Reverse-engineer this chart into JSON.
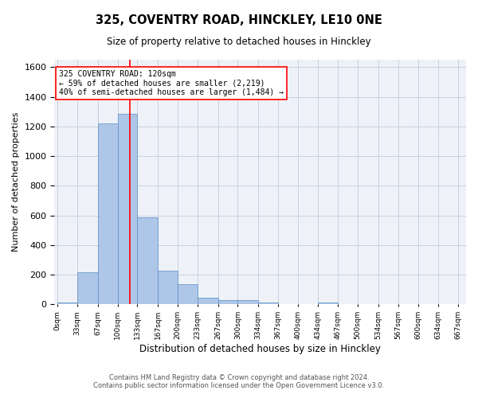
{
  "title": "325, COVENTRY ROAD, HINCKLEY, LE10 0NE",
  "subtitle": "Size of property relative to detached houses in Hinckley",
  "xlabel": "Distribution of detached houses by size in Hinckley",
  "ylabel": "Number of detached properties",
  "footnote1": "Contains HM Land Registry data © Crown copyright and database right 2024.",
  "footnote2": "Contains public sector information licensed under the Open Government Licence v3.0.",
  "bar_color": "#aec6e8",
  "bar_edgecolor": "#5a8fc2",
  "gridcolor": "#c8d0e0",
  "background_color": "#eef2f8",
  "property_size": 120,
  "property_label": "325 COVENTRY ROAD: 120sqm",
  "annotation_line1": "← 59% of detached houses are smaller (2,219)",
  "annotation_line2": "40% of semi-detached houses are larger (1,484) →",
  "redline_x": 120,
  "ylim": [
    0,
    1650
  ],
  "yticks": [
    0,
    200,
    400,
    600,
    800,
    1000,
    1200,
    1400,
    1600
  ],
  "bin_edges": [
    0,
    33,
    67,
    100,
    133,
    167,
    200,
    233,
    267,
    300,
    334,
    367,
    400,
    434,
    467,
    500,
    534,
    567,
    600,
    634,
    667
  ],
  "bar_heights": [
    13,
    219,
    1222,
    1285,
    585,
    228,
    137,
    44,
    29,
    27,
    15,
    0,
    0,
    13,
    0,
    0,
    0,
    0,
    0,
    0
  ]
}
